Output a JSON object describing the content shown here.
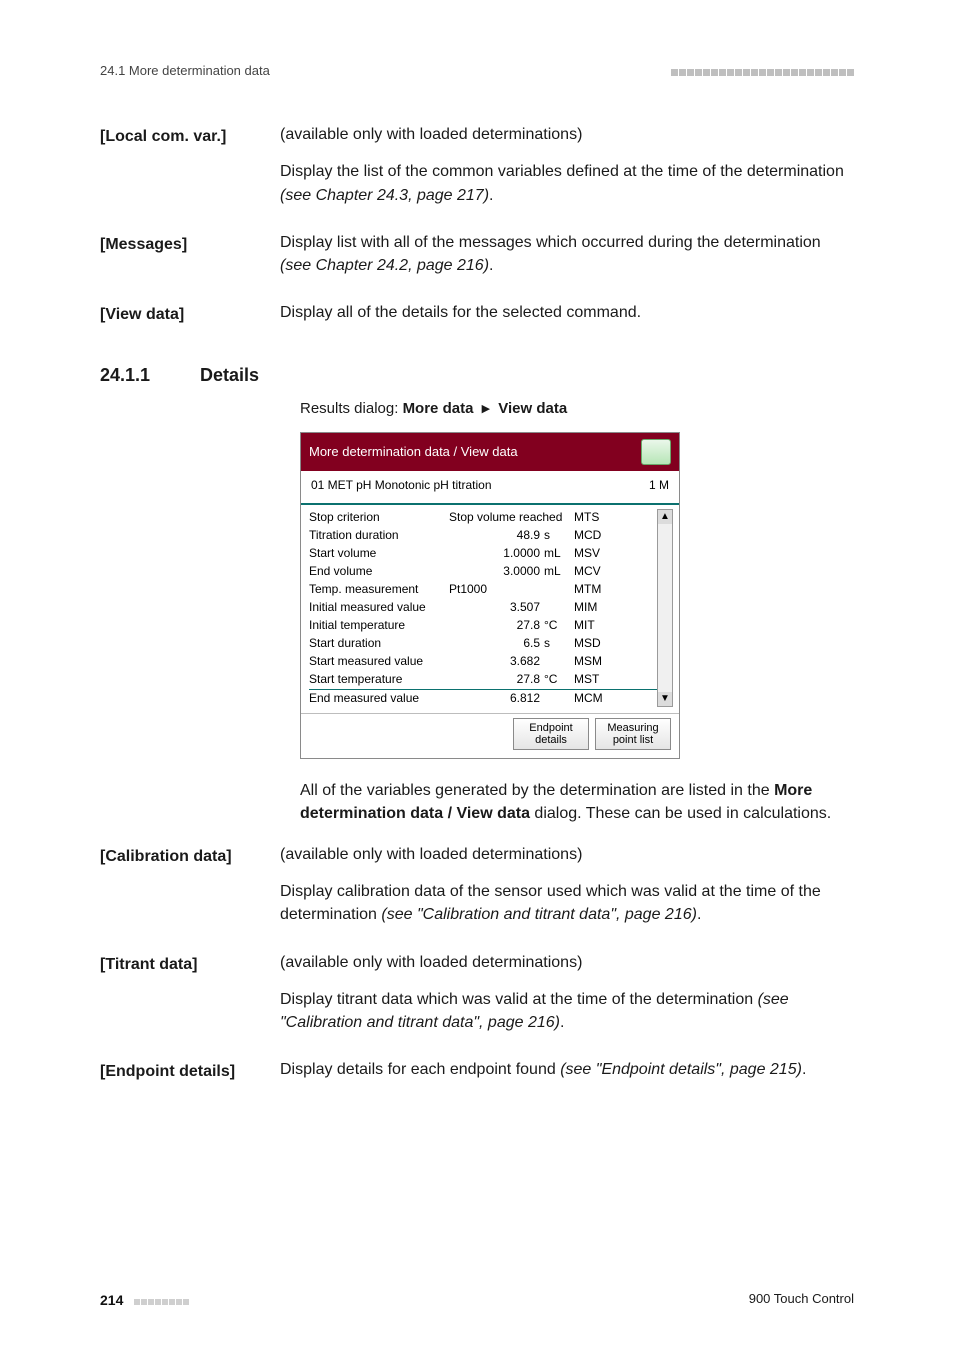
{
  "runhead_left": "24.1 More determination data",
  "section": {
    "number": "24.1.1",
    "title": "Details"
  },
  "crumb": {
    "pre": "Results dialog: ",
    "a": "More data",
    "b": "View data"
  },
  "defs_top": [
    {
      "label": "[Local com. var.]",
      "paras": [
        {
          "plain": "(available only with loaded determinations)"
        },
        {
          "plain_pre": "Display the list of the common variables defined at the time of the determination ",
          "ital": "(see Chapter 24.3, page 217)",
          "plain_post": "."
        }
      ]
    },
    {
      "label": "[Messages]",
      "paras": [
        {
          "plain_pre": "Display list with all of the messages which occurred during the determination ",
          "ital": "(see Chapter 24.2, page 216)",
          "plain_post": "."
        }
      ]
    },
    {
      "label": "[View data]",
      "paras": [
        {
          "plain": "Display all of the details for the selected command."
        }
      ]
    }
  ],
  "dialog": {
    "title": "More determination data / View data",
    "sub_left": "01  MET pH  Monotonic pH titration",
    "sub_right": "1 M",
    "rows": [
      {
        "lab": "Stop criterion",
        "valtxt": "Stop volume reached",
        "val": "",
        "unit": "",
        "code": "MTS"
      },
      {
        "lab": "Titration duration",
        "valtxt": "",
        "val": "48.9",
        "unit": "s",
        "code": "MCD"
      },
      {
        "lab": "Start volume",
        "valtxt": "",
        "val": "1.0000",
        "unit": "mL",
        "code": "MSV"
      },
      {
        "lab": "End volume",
        "valtxt": "",
        "val": "3.0000",
        "unit": "mL",
        "code": "MCV"
      },
      {
        "lab": "Temp. measurement",
        "valtxt": "Pt1000",
        "val": "",
        "unit": "",
        "code": "MTM"
      },
      {
        "lab": "Initial measured value",
        "valtxt": "",
        "val": "3.507",
        "unit": "",
        "code": "MIM"
      },
      {
        "lab": "Initial temperature",
        "valtxt": "",
        "val": "27.8",
        "unit": "°C",
        "code": "MIT"
      },
      {
        "lab": "Start duration",
        "valtxt": "",
        "val": "6.5",
        "unit": "s",
        "code": "MSD"
      },
      {
        "lab": "Start measured value",
        "valtxt": "",
        "val": "3.682",
        "unit": "",
        "code": "MSM"
      },
      {
        "lab": "Start temperature",
        "valtxt": "",
        "val": "27.8",
        "unit": "°C",
        "code": "MST"
      },
      {
        "lab": "End measured value",
        "valtxt": "",
        "val": "6.812",
        "unit": "",
        "code": "MCM"
      }
    ],
    "btn_endpoint_l1": "Endpoint",
    "btn_endpoint_l2": "details",
    "btn_measure_l1": "Measuring",
    "btn_measure_l2": "point list"
  },
  "after_dialog": {
    "pre": "All of the variables generated by the determination are listed in the ",
    "bold": "More determination data / View data",
    "post": " dialog. These can be used in calculations."
  },
  "defs_bottom": [
    {
      "label": "[Calibration data]",
      "paras": [
        {
          "plain": "(available only with loaded determinations)"
        },
        {
          "plain_pre": "Display calibration data of the sensor used which was valid at the time of the determination ",
          "ital": "(see \"Calibration and titrant data\", page 216)",
          "plain_post": "."
        }
      ]
    },
    {
      "label": "[Titrant data]",
      "paras": [
        {
          "plain": "(available only with loaded determinations)"
        },
        {
          "plain_pre": "Display titrant data which was valid at the time of the determination ",
          "ital": "(see \"Calibration and titrant data\", page 216)",
          "plain_post": "."
        }
      ]
    },
    {
      "label": "[Endpoint details]",
      "paras": [
        {
          "plain_pre": "Display details for each endpoint found ",
          "ital": "(see \"Endpoint details\", page 215)",
          "plain_post": "."
        }
      ]
    }
  ],
  "footer": {
    "page": "214",
    "product": "900 Touch Control"
  }
}
